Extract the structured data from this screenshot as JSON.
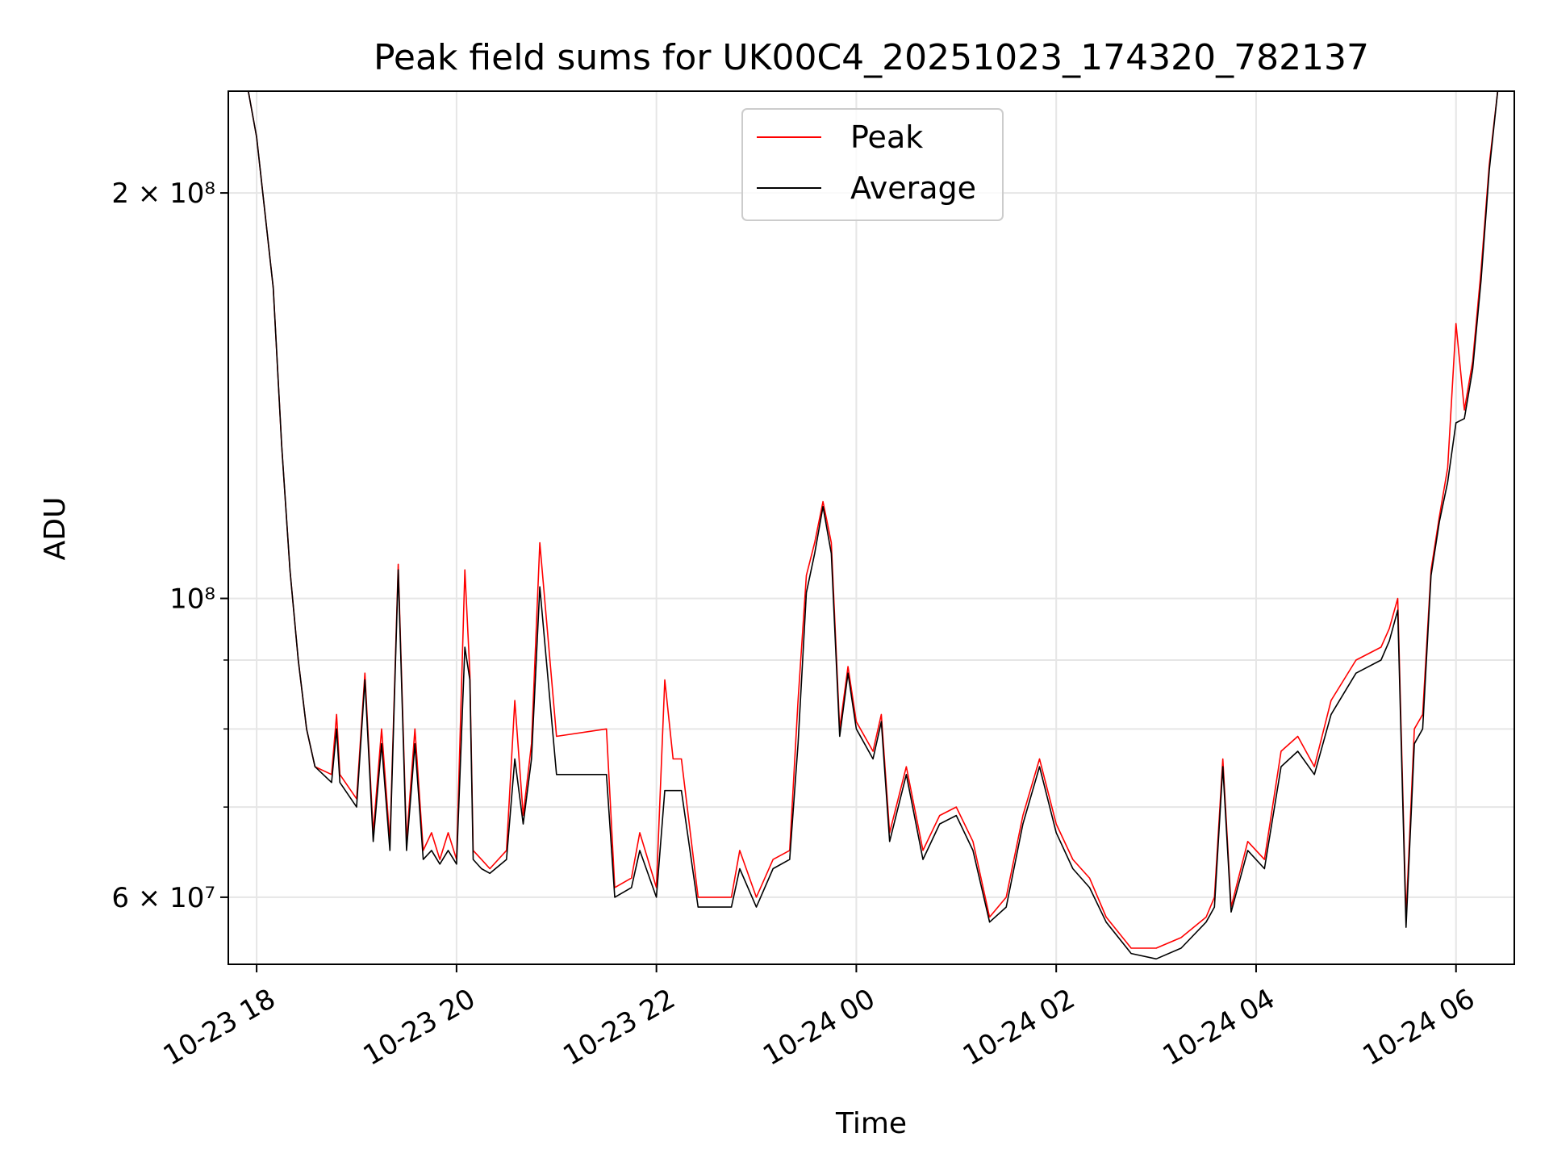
{
  "chart_data": {
    "type": "line",
    "title": "Peak field sums for UK00C4_20251023_174320_782137",
    "xlabel": "Time",
    "ylabel": "ADU",
    "y_scale": "log",
    "grid": true,
    "legend_position": "top-center",
    "xlim": [
      "2025-10-23 17:43",
      "2025-10-24 06:35"
    ],
    "ylim": [
      53500000,
      238000000
    ],
    "x_ticks": [
      "10-23 18",
      "10-23 20",
      "10-23 22",
      "10-24 00",
      "10-24 02",
      "10-24 04",
      "10-24 06"
    ],
    "x_tick_values": [
      "2025-10-23 18:00",
      "2025-10-23 20:00",
      "2025-10-23 22:00",
      "2025-10-24 00:00",
      "2025-10-24 02:00",
      "2025-10-24 04:00",
      "2025-10-24 06:00"
    ],
    "y_ticks": [
      {
        "value": 200000000,
        "label": "2 × 10⁸"
      },
      {
        "value": 100000000,
        "label": "10⁸"
      },
      {
        "value": 60000000,
        "label": "6 × 10⁷"
      }
    ],
    "y_minor_ticks": [
      70000000,
      80000000,
      90000000
    ],
    "series": [
      {
        "name": "Peak",
        "color": "#ff0000",
        "x": [
          "2025-10-23 17:43",
          "2025-10-23 17:55",
          "2025-10-23 18:00",
          "2025-10-23 18:10",
          "2025-10-23 18:15",
          "2025-10-23 18:20",
          "2025-10-23 18:25",
          "2025-10-23 18:30",
          "2025-10-23 18:35",
          "2025-10-23 18:45",
          "2025-10-23 18:48",
          "2025-10-23 18:50",
          "2025-10-23 19:00",
          "2025-10-23 19:05",
          "2025-10-23 19:10",
          "2025-10-23 19:15",
          "2025-10-23 19:20",
          "2025-10-23 19:25",
          "2025-10-23 19:30",
          "2025-10-23 19:35",
          "2025-10-23 19:40",
          "2025-10-23 19:45",
          "2025-10-23 19:50",
          "2025-10-23 19:55",
          "2025-10-23 20:00",
          "2025-10-23 20:05",
          "2025-10-23 20:08",
          "2025-10-23 20:10",
          "2025-10-23 20:15",
          "2025-10-23 20:20",
          "2025-10-23 20:30",
          "2025-10-23 20:35",
          "2025-10-23 20:40",
          "2025-10-23 20:45",
          "2025-10-23 20:50",
          "2025-10-23 21:00",
          "2025-10-23 21:30",
          "2025-10-23 21:35",
          "2025-10-23 21:45",
          "2025-10-23 21:50",
          "2025-10-23 22:00",
          "2025-10-23 22:05",
          "2025-10-23 22:10",
          "2025-10-23 22:15",
          "2025-10-23 22:25",
          "2025-10-23 22:30",
          "2025-10-23 22:45",
          "2025-10-23 22:50",
          "2025-10-23 23:00",
          "2025-10-23 23:10",
          "2025-10-23 23:20",
          "2025-10-23 23:25",
          "2025-10-23 23:30",
          "2025-10-23 23:35",
          "2025-10-23 23:40",
          "2025-10-23 23:45",
          "2025-10-23 23:50",
          "2025-10-23 23:55",
          "2025-10-24 00:00",
          "2025-10-24 00:10",
          "2025-10-24 00:15",
          "2025-10-24 00:20",
          "2025-10-24 00:30",
          "2025-10-24 00:40",
          "2025-10-24 00:50",
          "2025-10-24 01:00",
          "2025-10-24 01:10",
          "2025-10-24 01:20",
          "2025-10-24 01:30",
          "2025-10-24 01:40",
          "2025-10-24 01:50",
          "2025-10-24 02:00",
          "2025-10-24 02:10",
          "2025-10-24 02:20",
          "2025-10-24 02:30",
          "2025-10-24 02:45",
          "2025-10-24 03:00",
          "2025-10-24 03:15",
          "2025-10-24 03:30",
          "2025-10-24 03:35",
          "2025-10-24 03:40",
          "2025-10-24 03:45",
          "2025-10-24 03:55",
          "2025-10-24 04:05",
          "2025-10-24 04:15",
          "2025-10-24 04:25",
          "2025-10-24 04:35",
          "2025-10-24 04:45",
          "2025-10-24 05:00",
          "2025-10-24 05:15",
          "2025-10-24 05:20",
          "2025-10-24 05:25",
          "2025-10-24 05:30",
          "2025-10-24 05:35",
          "2025-10-24 05:40",
          "2025-10-24 05:45",
          "2025-10-24 05:50",
          "2025-10-24 05:55",
          "2025-10-24 06:00",
          "2025-10-24 06:05",
          "2025-10-24 06:10",
          "2025-10-24 06:15",
          "2025-10-24 06:20",
          "2025-10-24 06:25",
          "2025-10-24 06:35"
        ],
        "values": [
          238000000,
          238000000,
          220000000,
          170000000,
          130000000,
          105000000,
          90000000,
          80000000,
          75000000,
          74000000,
          82000000,
          74000000,
          71000000,
          88000000,
          67000000,
          80000000,
          66000000,
          106000000,
          66000000,
          80000000,
          65000000,
          67000000,
          64000000,
          67000000,
          64000000,
          105000000,
          88000000,
          65000000,
          64000000,
          63000000,
          65000000,
          84000000,
          69000000,
          78000000,
          110000000,
          79000000,
          80000000,
          61000000,
          62000000,
          67000000,
          61000000,
          87000000,
          76000000,
          76000000,
          60000000,
          60000000,
          60000000,
          65000000,
          60000000,
          64000000,
          65000000,
          84000000,
          104000000,
          110000000,
          118000000,
          110000000,
          80000000,
          89000000,
          81000000,
          77000000,
          82000000,
          67000000,
          75000000,
          65000000,
          69000000,
          70000000,
          66000000,
          58000000,
          60000000,
          69000000,
          76000000,
          68000000,
          64000000,
          62000000,
          58000000,
          55000000,
          55000000,
          56000000,
          58000000,
          60000000,
          76000000,
          59000000,
          66000000,
          64000000,
          77000000,
          79000000,
          75000000,
          84000000,
          90000000,
          92000000,
          95000000,
          100000000,
          58000000,
          80000000,
          82000000,
          105000000,
          115000000,
          125000000,
          160000000,
          138000000,
          150000000,
          175000000,
          210000000,
          238000000,
          238000000
        ]
      },
      {
        "name": "Average",
        "color": "#000000",
        "x": [
          "2025-10-23 17:43",
          "2025-10-23 17:55",
          "2025-10-23 18:00",
          "2025-10-23 18:10",
          "2025-10-23 18:15",
          "2025-10-23 18:20",
          "2025-10-23 18:25",
          "2025-10-23 18:30",
          "2025-10-23 18:35",
          "2025-10-23 18:45",
          "2025-10-23 18:48",
          "2025-10-23 18:50",
          "2025-10-23 19:00",
          "2025-10-23 19:05",
          "2025-10-23 19:10",
          "2025-10-23 19:15",
          "2025-10-23 19:20",
          "2025-10-23 19:25",
          "2025-10-23 19:30",
          "2025-10-23 19:35",
          "2025-10-23 19:40",
          "2025-10-23 19:45",
          "2025-10-23 19:50",
          "2025-10-23 19:55",
          "2025-10-23 20:00",
          "2025-10-23 20:05",
          "2025-10-23 20:08",
          "2025-10-23 20:10",
          "2025-10-23 20:15",
          "2025-10-23 20:20",
          "2025-10-23 20:30",
          "2025-10-23 20:35",
          "2025-10-23 20:40",
          "2025-10-23 20:45",
          "2025-10-23 20:50",
          "2025-10-23 21:00",
          "2025-10-23 21:30",
          "2025-10-23 21:35",
          "2025-10-23 21:45",
          "2025-10-23 21:50",
          "2025-10-23 22:00",
          "2025-10-23 22:05",
          "2025-10-23 22:10",
          "2025-10-23 22:15",
          "2025-10-23 22:25",
          "2025-10-23 22:30",
          "2025-10-23 22:45",
          "2025-10-23 22:50",
          "2025-10-23 23:00",
          "2025-10-23 23:10",
          "2025-10-23 23:20",
          "2025-10-23 23:25",
          "2025-10-23 23:30",
          "2025-10-23 23:35",
          "2025-10-23 23:40",
          "2025-10-23 23:45",
          "2025-10-23 23:50",
          "2025-10-23 23:55",
          "2025-10-24 00:00",
          "2025-10-24 00:10",
          "2025-10-24 00:15",
          "2025-10-24 00:20",
          "2025-10-24 00:30",
          "2025-10-24 00:40",
          "2025-10-24 00:50",
          "2025-10-24 01:00",
          "2025-10-24 01:10",
          "2025-10-24 01:20",
          "2025-10-24 01:30",
          "2025-10-24 01:40",
          "2025-10-24 01:50",
          "2025-10-24 02:00",
          "2025-10-24 02:10",
          "2025-10-24 02:20",
          "2025-10-24 02:30",
          "2025-10-24 02:45",
          "2025-10-24 03:00",
          "2025-10-24 03:15",
          "2025-10-24 03:30",
          "2025-10-24 03:35",
          "2025-10-24 03:40",
          "2025-10-24 03:45",
          "2025-10-24 03:55",
          "2025-10-24 04:05",
          "2025-10-24 04:15",
          "2025-10-24 04:25",
          "2025-10-24 04:35",
          "2025-10-24 04:45",
          "2025-10-24 05:00",
          "2025-10-24 05:15",
          "2025-10-24 05:20",
          "2025-10-24 05:25",
          "2025-10-24 05:30",
          "2025-10-24 05:35",
          "2025-10-24 05:40",
          "2025-10-24 05:45",
          "2025-10-24 05:50",
          "2025-10-24 05:55",
          "2025-10-24 06:00",
          "2025-10-24 06:05",
          "2025-10-24 06:10",
          "2025-10-24 06:15",
          "2025-10-24 06:20",
          "2025-10-24 06:25",
          "2025-10-24 06:35"
        ],
        "values": [
          238000000,
          238000000,
          220000000,
          170000000,
          130000000,
          105000000,
          90000000,
          80000000,
          75000000,
          73000000,
          80000000,
          73000000,
          70000000,
          87000000,
          66000000,
          78000000,
          65000000,
          105000000,
          65000000,
          78000000,
          64000000,
          65000000,
          63500000,
          65000000,
          63500000,
          92000000,
          87000000,
          64000000,
          63000000,
          62500000,
          64000000,
          76000000,
          68000000,
          76000000,
          102000000,
          74000000,
          74000000,
          60000000,
          61000000,
          65000000,
          60000000,
          72000000,
          72000000,
          72000000,
          59000000,
          59000000,
          59000000,
          63000000,
          59000000,
          63000000,
          64000000,
          78000000,
          101000000,
          108000000,
          117000000,
          108000000,
          79000000,
          88000000,
          80000000,
          76000000,
          81000000,
          66000000,
          74000000,
          64000000,
          68000000,
          69000000,
          65000000,
          57500000,
          59000000,
          68000000,
          75000000,
          67000000,
          63000000,
          61000000,
          57500000,
          54500000,
          54000000,
          55000000,
          57500000,
          59000000,
          75000000,
          58500000,
          65000000,
          63000000,
          75000000,
          77000000,
          74000000,
          82000000,
          88000000,
          90000000,
          93000000,
          98000000,
          57000000,
          78000000,
          80000000,
          104000000,
          114000000,
          122000000,
          135000000,
          136000000,
          148000000,
          172000000,
          208000000,
          238000000,
          238000000
        ]
      }
    ]
  }
}
